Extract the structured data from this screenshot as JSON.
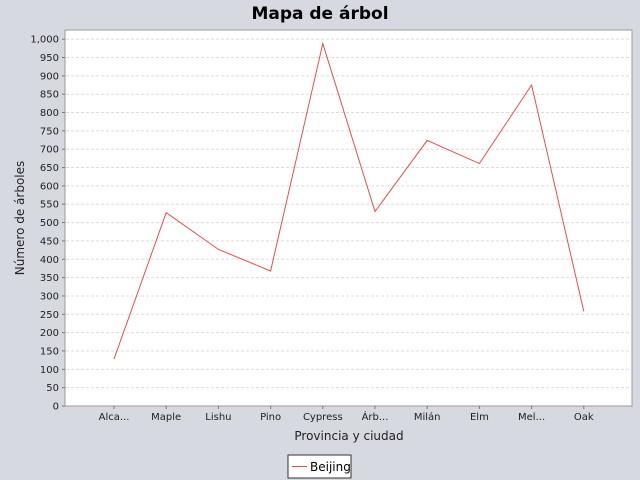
{
  "chart_data": {
    "type": "line",
    "title": "Mapa de árbol",
    "xlabel": "Provincia y ciudad",
    "ylabel": "Número de árboles",
    "categories": [
      "Alca...",
      "Maple",
      "Lishu",
      "Pino",
      "Cypress",
      "Árb...",
      "Milán",
      "Elm",
      "Mel...",
      "Oak"
    ],
    "ylim": [
      0,
      1025
    ],
    "yticks": [
      "0",
      "50",
      "100",
      "150",
      "200",
      "250",
      "300",
      "350",
      "400",
      "450",
      "500",
      "550",
      "600",
      "650",
      "700",
      "750",
      "800",
      "850",
      "900",
      "950",
      "1,000"
    ],
    "ytick_values": [
      0,
      50,
      100,
      150,
      200,
      250,
      300,
      350,
      400,
      450,
      500,
      550,
      600,
      650,
      700,
      750,
      800,
      850,
      900,
      950,
      1000
    ],
    "grid": true,
    "legend_position": "bottom",
    "series": [
      {
        "name": "Beijing",
        "color": "#e05050",
        "values": [
          128,
          527,
          427,
          368,
          988,
          530,
          724,
          661,
          875,
          258
        ]
      }
    ]
  }
}
